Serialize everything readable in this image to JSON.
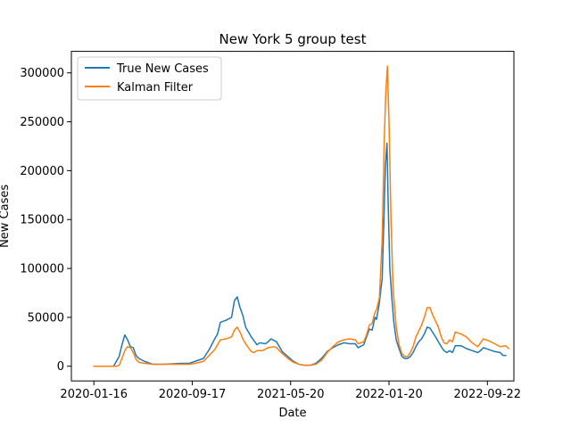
{
  "chart_data": {
    "type": "line",
    "title": "New York 5 group test",
    "xlabel": "Date",
    "ylabel": "New Cases",
    "x_ticks": [
      "2020-01-16",
      "2020-09-17",
      "2021-05-20",
      "2022-01-20",
      "2022-09-22"
    ],
    "y_ticks": [
      "0",
      "50000",
      "100000",
      "150000",
      "200000",
      "250000",
      "300000"
    ],
    "xlim": [
      "2019-11-21",
      "2022-11-27"
    ],
    "ylim": [
      -15000,
      322000
    ],
    "grid": false,
    "legend": "upper-left",
    "series": [
      {
        "name": "True New Cases",
        "color": "#1f77b4",
        "points": [
          [
            "2020-01-16",
            0
          ],
          [
            "2020-02-13",
            0
          ],
          [
            "2020-03-05",
            0
          ],
          [
            "2020-03-19",
            10000
          ],
          [
            "2020-03-26",
            22000
          ],
          [
            "2020-04-02",
            32000
          ],
          [
            "2020-04-09",
            27000
          ],
          [
            "2020-04-16",
            20000
          ],
          [
            "2020-04-23",
            19000
          ],
          [
            "2020-04-30",
            11000
          ],
          [
            "2020-05-07",
            8000
          ],
          [
            "2020-05-21",
            5000
          ],
          [
            "2020-06-11",
            2000
          ],
          [
            "2020-07-09",
            2000
          ],
          [
            "2020-07-30",
            2500
          ],
          [
            "2020-08-20",
            3000
          ],
          [
            "2020-09-10",
            3000
          ],
          [
            "2020-09-24",
            5000
          ],
          [
            "2020-10-15",
            8000
          ],
          [
            "2020-10-29",
            17000
          ],
          [
            "2020-11-12",
            28000
          ],
          [
            "2020-11-19",
            33000
          ],
          [
            "2020-11-26",
            45000
          ],
          [
            "2020-12-10",
            47000
          ],
          [
            "2020-12-24",
            50000
          ],
          [
            "2020-12-31",
            67000
          ],
          [
            "2021-01-07",
            71000
          ],
          [
            "2021-01-14",
            60000
          ],
          [
            "2021-01-21",
            52000
          ],
          [
            "2021-01-28",
            40000
          ],
          [
            "2021-02-11",
            30000
          ],
          [
            "2021-02-25",
            22000
          ],
          [
            "2021-03-04",
            24000
          ],
          [
            "2021-03-18",
            23000
          ],
          [
            "2021-03-25",
            25000
          ],
          [
            "2021-04-01",
            28000
          ],
          [
            "2021-04-15",
            25000
          ],
          [
            "2021-04-29",
            15000
          ],
          [
            "2021-05-13",
            10000
          ],
          [
            "2021-05-27",
            5000
          ],
          [
            "2021-06-10",
            2000
          ],
          [
            "2021-06-24",
            1000
          ],
          [
            "2021-07-08",
            1000
          ],
          [
            "2021-07-22",
            3000
          ],
          [
            "2021-08-05",
            8000
          ],
          [
            "2021-08-19",
            15000
          ],
          [
            "2021-09-02",
            19000
          ],
          [
            "2021-09-16",
            22000
          ],
          [
            "2021-09-30",
            24000
          ],
          [
            "2021-10-14",
            23000
          ],
          [
            "2021-10-28",
            23000
          ],
          [
            "2021-11-04",
            19000
          ],
          [
            "2021-11-18",
            22000
          ],
          [
            "2021-11-25",
            30000
          ],
          [
            "2021-12-02",
            38000
          ],
          [
            "2021-12-09",
            37000
          ],
          [
            "2021-12-16",
            50000
          ],
          [
            "2021-12-20",
            48000
          ],
          [
            "2021-12-27",
            65000
          ],
          [
            "2022-01-03",
            90000
          ],
          [
            "2022-01-08",
            160000
          ],
          [
            "2022-01-11",
            205000
          ],
          [
            "2022-01-15",
            228000
          ],
          [
            "2022-01-18",
            165000
          ],
          [
            "2022-01-22",
            100000
          ],
          [
            "2022-01-27",
            70000
          ],
          [
            "2022-02-01",
            45000
          ],
          [
            "2022-02-07",
            27000
          ],
          [
            "2022-02-14",
            18000
          ],
          [
            "2022-02-21",
            10000
          ],
          [
            "2022-02-28",
            8000
          ],
          [
            "2022-03-07",
            8000
          ],
          [
            "2022-03-14",
            10000
          ],
          [
            "2022-03-21",
            14000
          ],
          [
            "2022-03-28",
            20000
          ],
          [
            "2022-04-04",
            25000
          ],
          [
            "2022-04-11",
            28000
          ],
          [
            "2022-04-18",
            33000
          ],
          [
            "2022-04-25",
            40000
          ],
          [
            "2022-05-02",
            39000
          ],
          [
            "2022-05-16",
            30000
          ],
          [
            "2022-05-30",
            20000
          ],
          [
            "2022-06-06",
            16000
          ],
          [
            "2022-06-13",
            14000
          ],
          [
            "2022-06-20",
            16000
          ],
          [
            "2022-06-27",
            14000
          ],
          [
            "2022-07-04",
            21000
          ],
          [
            "2022-07-18",
            21000
          ],
          [
            "2022-08-01",
            18000
          ],
          [
            "2022-08-15",
            16000
          ],
          [
            "2022-08-29",
            14000
          ],
          [
            "2022-09-05",
            16000
          ],
          [
            "2022-09-12",
            19000
          ],
          [
            "2022-09-26",
            17000
          ],
          [
            "2022-10-10",
            15000
          ],
          [
            "2022-10-24",
            14000
          ],
          [
            "2022-10-31",
            11000
          ],
          [
            "2022-11-07",
            11000
          ]
        ]
      },
      {
        "name": "Kalman Filter",
        "color": "#ff7f0e",
        "points": [
          [
            "2020-01-16",
            0
          ],
          [
            "2020-02-13",
            0
          ],
          [
            "2020-03-12",
            0
          ],
          [
            "2020-03-19",
            1000
          ],
          [
            "2020-03-26",
            8000
          ],
          [
            "2020-04-02",
            16000
          ],
          [
            "2020-04-09",
            20000
          ],
          [
            "2020-04-16",
            19000
          ],
          [
            "2020-04-23",
            14000
          ],
          [
            "2020-04-30",
            7000
          ],
          [
            "2020-05-07",
            4000
          ],
          [
            "2020-05-21",
            3000
          ],
          [
            "2020-06-11",
            2000
          ],
          [
            "2020-07-09",
            2000
          ],
          [
            "2020-07-30",
            2000
          ],
          [
            "2020-08-20",
            2000
          ],
          [
            "2020-09-10",
            2000
          ],
          [
            "2020-09-24",
            3000
          ],
          [
            "2020-10-15",
            5000
          ],
          [
            "2020-10-29",
            11000
          ],
          [
            "2020-11-12",
            17000
          ],
          [
            "2020-11-26",
            27000
          ],
          [
            "2020-12-10",
            28000
          ],
          [
            "2020-12-24",
            30000
          ],
          [
            "2020-12-31",
            37000
          ],
          [
            "2021-01-07",
            40000
          ],
          [
            "2021-01-14",
            35000
          ],
          [
            "2021-01-21",
            28000
          ],
          [
            "2021-01-28",
            23000
          ],
          [
            "2021-02-11",
            15000
          ],
          [
            "2021-02-18",
            14000
          ],
          [
            "2021-02-25",
            16000
          ],
          [
            "2021-03-11",
            16000
          ],
          [
            "2021-03-25",
            19000
          ],
          [
            "2021-04-08",
            20000
          ],
          [
            "2021-04-15",
            19000
          ],
          [
            "2021-04-29",
            13000
          ],
          [
            "2021-05-13",
            8000
          ],
          [
            "2021-05-27",
            4000
          ],
          [
            "2021-06-10",
            2000
          ],
          [
            "2021-06-24",
            1000
          ],
          [
            "2021-07-08",
            1000
          ],
          [
            "2021-07-22",
            2000
          ],
          [
            "2021-08-05",
            6000
          ],
          [
            "2021-08-19",
            14000
          ],
          [
            "2021-09-02",
            20000
          ],
          [
            "2021-09-16",
            25000
          ],
          [
            "2021-09-30",
            27000
          ],
          [
            "2021-10-14",
            28000
          ],
          [
            "2021-10-28",
            27000
          ],
          [
            "2021-11-04",
            23000
          ],
          [
            "2021-11-18",
            25000
          ],
          [
            "2021-11-25",
            32000
          ],
          [
            "2021-12-02",
            42000
          ],
          [
            "2021-12-09",
            44000
          ],
          [
            "2021-12-16",
            55000
          ],
          [
            "2021-12-20",
            58000
          ],
          [
            "2021-12-27",
            70000
          ],
          [
            "2022-01-03",
            130000
          ],
          [
            "2022-01-08",
            230000
          ],
          [
            "2022-01-12",
            280000
          ],
          [
            "2022-01-16",
            307000
          ],
          [
            "2022-01-20",
            250000
          ],
          [
            "2022-01-25",
            150000
          ],
          [
            "2022-01-30",
            80000
          ],
          [
            "2022-02-07",
            40000
          ],
          [
            "2022-02-14",
            22000
          ],
          [
            "2022-02-21",
            13000
          ],
          [
            "2022-02-28",
            10000
          ],
          [
            "2022-03-07",
            10000
          ],
          [
            "2022-03-14",
            14000
          ],
          [
            "2022-03-21",
            20000
          ],
          [
            "2022-03-28",
            30000
          ],
          [
            "2022-04-04",
            36000
          ],
          [
            "2022-04-11",
            42000
          ],
          [
            "2022-04-18",
            50000
          ],
          [
            "2022-04-25",
            60000
          ],
          [
            "2022-05-02",
            60000
          ],
          [
            "2022-05-09",
            52000
          ],
          [
            "2022-05-23",
            40000
          ],
          [
            "2022-05-30",
            30000
          ],
          [
            "2022-06-06",
            24000
          ],
          [
            "2022-06-13",
            23000
          ],
          [
            "2022-06-20",
            27000
          ],
          [
            "2022-06-27",
            25000
          ],
          [
            "2022-07-04",
            35000
          ],
          [
            "2022-07-18",
            33000
          ],
          [
            "2022-08-01",
            30000
          ],
          [
            "2022-08-15",
            24000
          ],
          [
            "2022-08-29",
            20000
          ],
          [
            "2022-09-12",
            28000
          ],
          [
            "2022-09-26",
            26000
          ],
          [
            "2022-10-10",
            23000
          ],
          [
            "2022-10-24",
            20000
          ],
          [
            "2022-11-07",
            21000
          ],
          [
            "2022-11-14",
            18000
          ]
        ]
      }
    ]
  }
}
